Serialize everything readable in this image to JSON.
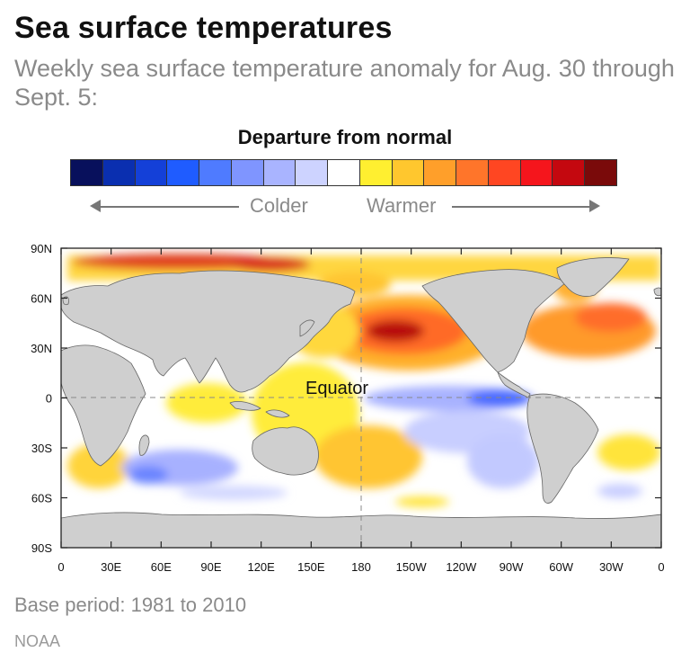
{
  "title": "Sea surface temperatures",
  "subtitle": "Weekly sea surface temperature anomaly for Aug. 30 through Sept. 5:",
  "legend": {
    "title": "Departure from normal",
    "colors": [
      "#08105c",
      "#0a2fb0",
      "#1440d8",
      "#1f5cff",
      "#4f7bff",
      "#7f95ff",
      "#a9b4ff",
      "#cdd3ff",
      "#ffffff",
      "#ffef30",
      "#ffc72e",
      "#ff9f2a",
      "#ff752a",
      "#ff4622",
      "#f5151c",
      "#c4080f",
      "#7a0a0a"
    ],
    "colder_label": "Colder",
    "warmer_label": "Warmer"
  },
  "map": {
    "equator_label": "Equator",
    "lat_ticks": [
      "90N",
      "60N",
      "30N",
      "0",
      "30S",
      "60S",
      "90S"
    ],
    "lon_ticks": [
      "0",
      "30E",
      "60E",
      "90E",
      "120E",
      "150E",
      "180",
      "150W",
      "120W",
      "90W",
      "60W",
      "30W",
      "0"
    ]
  },
  "footnote": "Base period: 1981 to 2010",
  "source": "NOAA"
}
